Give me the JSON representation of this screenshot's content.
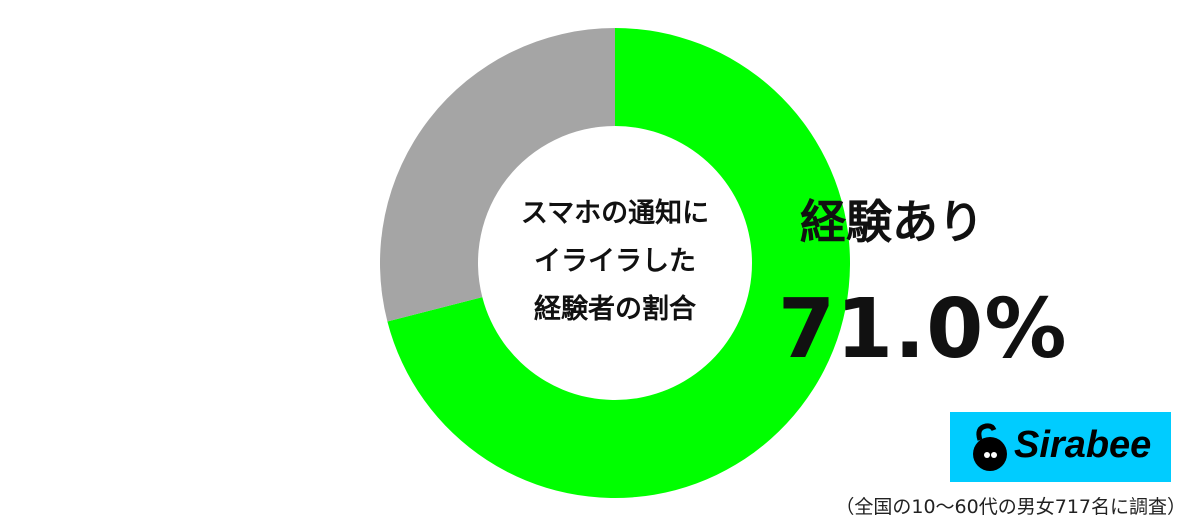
{
  "chart_data": {
    "type": "pie",
    "title": "スマホの通知にイライラした経験者の割合",
    "title_lines": [
      "スマホの通知に",
      "イライラした",
      "経験者の割合"
    ],
    "donut": true,
    "slices": [
      {
        "name": "経験あり",
        "value": 71.0,
        "color": "#00ff00"
      },
      {
        "name": "",
        "value": 29.0,
        "color": "#a5a5a5"
      }
    ],
    "highlight_label": "経験あり",
    "highlight_value": "71.0%"
  },
  "logo": {
    "text": "Sirabee",
    "color": "#00ccff"
  },
  "note": "（全国の10〜60代の男女717名に調査）"
}
